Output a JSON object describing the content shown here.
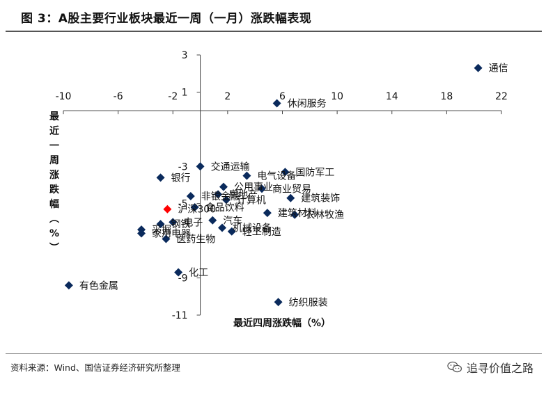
{
  "title": "图 3：A股主要行业板块最近一周（一月）涨跌幅表现",
  "source": "资料来源：Wind、国信证券经济研究所整理",
  "watermark": "追寻价值之路",
  "watermark_icon": "wechat-icon",
  "colors": {
    "point": "#0a2a5c",
    "highlight": "#ff0000",
    "axis": "#444444",
    "title_rule": "#555555"
  },
  "chart_data": {
    "type": "scatter",
    "xlabel": "最近四周涨跌幅（%）",
    "ylabel": "最近一周涨跌幅（%）",
    "xlim": [
      -10,
      22
    ],
    "ylim": [
      -11,
      3
    ],
    "xticks": [
      -10,
      -6,
      -2,
      2,
      6,
      10,
      14,
      18,
      22
    ],
    "xtick_labels": [
      "-10",
      "-6",
      "-2",
      "2",
      "6",
      "10",
      "14",
      "18",
      "22"
    ],
    "yticks": [
      3,
      1,
      -3,
      -5,
      -9,
      -11
    ],
    "ytick_labels": [
      "3",
      "1",
      "-3",
      "-5",
      "-9",
      "-11"
    ],
    "grid": false,
    "legend": "none",
    "points": [
      {
        "name": "通信",
        "x": 20.3,
        "y": 2.3
      },
      {
        "name": "休闲服务",
        "x": 5.6,
        "y": 0.4
      },
      {
        "name": "交通运输",
        "x": 0.0,
        "y": -3.0
      },
      {
        "name": "银行",
        "x": -2.9,
        "y": -3.6
      },
      {
        "name": "电气设备",
        "x": 3.4,
        "y": -3.5
      },
      {
        "name": "国防军工",
        "x": 6.2,
        "y": -3.3
      },
      {
        "name": "公用事业",
        "x": 1.7,
        "y": -4.1
      },
      {
        "name": "商业贸易",
        "x": 4.5,
        "y": -4.2
      },
      {
        "name": "房地产",
        "x": 1.3,
        "y": -4.5
      },
      {
        "name": "计算机",
        "x": 1.9,
        "y": -4.8
      },
      {
        "name": "建筑装饰",
        "x": 6.6,
        "y": -4.7
      },
      {
        "name": "非银金融",
        "x": -0.7,
        "y": -4.6
      },
      {
        "name": "沪深300",
        "x": -2.4,
        "y": -5.3,
        "highlight": true
      },
      {
        "name": "食品饮料",
        "x": -0.4,
        "y": -5.2
      },
      {
        "name": "建筑材料",
        "x": 4.9,
        "y": -5.5
      },
      {
        "name": "农林牧渔",
        "x": 6.9,
        "y": -5.6
      },
      {
        "name": "电子",
        "x": -2.0,
        "y": -6.0
      },
      {
        "name": "汽车",
        "x": 0.9,
        "y": -5.9
      },
      {
        "name": "机械设备",
        "x": 1.6,
        "y": -6.3
      },
      {
        "name": "轻工制造",
        "x": 2.3,
        "y": -6.5
      },
      {
        "name": "钢铁",
        "x": -2.9,
        "y": -6.1
      },
      {
        "name": "采掘",
        "x": -4.3,
        "y": -6.4
      },
      {
        "name": "家用电器",
        "x": -4.3,
        "y": -6.6
      },
      {
        "name": "医药生物",
        "x": -2.5,
        "y": -6.9
      },
      {
        "name": "化工",
        "x": -1.6,
        "y": -8.7
      },
      {
        "name": "有色金属",
        "x": -9.6,
        "y": -9.4
      },
      {
        "name": "纺织服装",
        "x": 5.7,
        "y": -10.3
      }
    ]
  }
}
